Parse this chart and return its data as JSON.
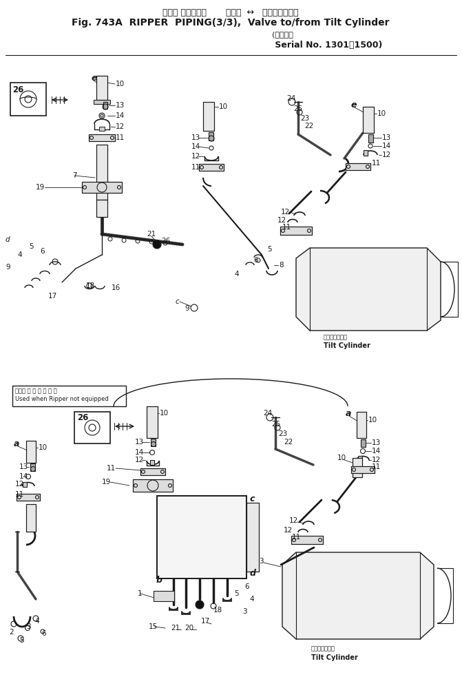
{
  "title_jp": "リッパ パイピング       バルブ  ↔   チルトシリンダ",
  "title_en": "Fig. 743A  RIPPER  PIPING(3/3),  Valve to/from Tilt Cylinder",
  "serial_jp": "適用号機",
  "serial_en": "Serial No. 1301～1500",
  "bg_color": "#ffffff",
  "lc": "#1a1a1a",
  "fs": 7.5,
  "tilt_label_jp": "チルトシリンダ",
  "tilt_label_en": "Tilt Cylinder",
  "ripper_not_used_jp": "リッパ 未 装 備 時 使 用",
  "ripper_not_used_en": "Used when Ripper not equipped"
}
